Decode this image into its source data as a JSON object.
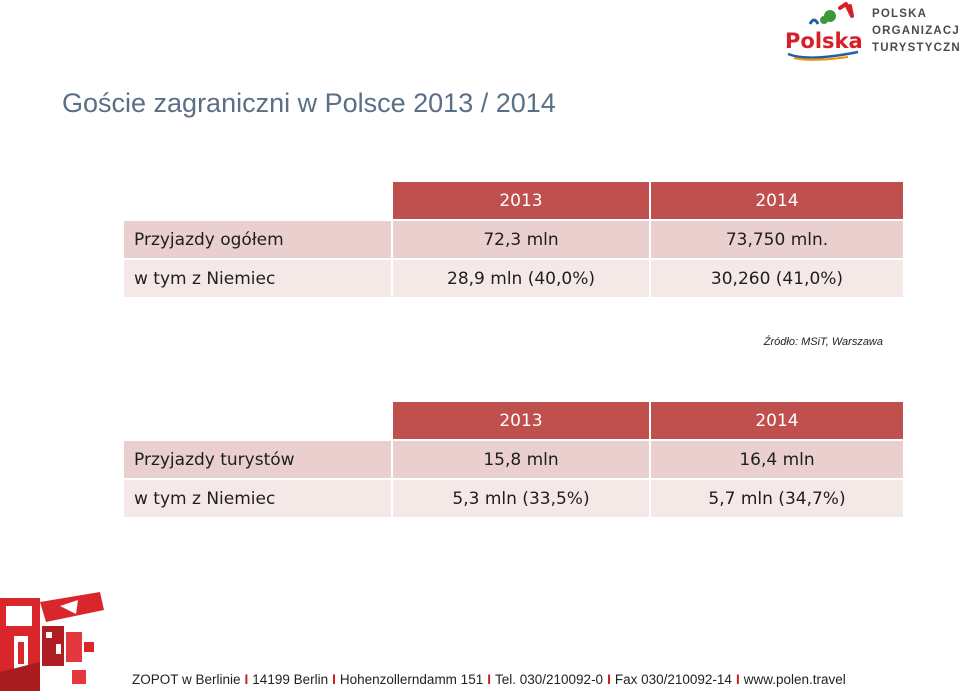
{
  "slide": {
    "title": "Goście zagraniczni w Polsce 2013 / 2014"
  },
  "logo": {
    "wordmark": "Polska",
    "org_line1": "POLSKA",
    "org_line2": "ORGANIZACJA",
    "org_line3": "TURYSTYCZNA",
    "colors": {
      "red": "#d61f26",
      "blue": "#1f5fa8",
      "green": "#3a9a3a",
      "orange": "#f29100"
    }
  },
  "table1": {
    "headers": [
      "",
      "2013",
      "2014"
    ],
    "rows": [
      [
        "Przyjazdy ogółem",
        "72,3 mln",
        "73,750 mln."
      ],
      [
        "w tym z Niemiec",
        "28,9 mln (40,0%)",
        "30,260 (41,0%)"
      ]
    ]
  },
  "source": "Źródło: MSiT, Warszawa",
  "table2": {
    "headers": [
      "",
      "2013",
      "2014"
    ],
    "rows": [
      [
        "Przyjazdy turystów",
        "15,8 mln",
        "16,4 mln"
      ],
      [
        "w tym z Niemiec",
        "5,3 mln (33,5%)",
        "5,7 mln (34,7%)"
      ]
    ]
  },
  "footer": {
    "items": [
      "ZOPOT w Berlinie",
      "14199 Berlin",
      "Hohenzollerndamm 151",
      "Tel. 030/210092-0",
      "Fax 030/210092-14",
      "www.polen.travel"
    ],
    "separator": "I"
  },
  "theme": {
    "header_red": "#c0504d",
    "row_dark": "#e9cfce",
    "row_light": "#f5e9e8",
    "title_color": "#5b6f86"
  }
}
